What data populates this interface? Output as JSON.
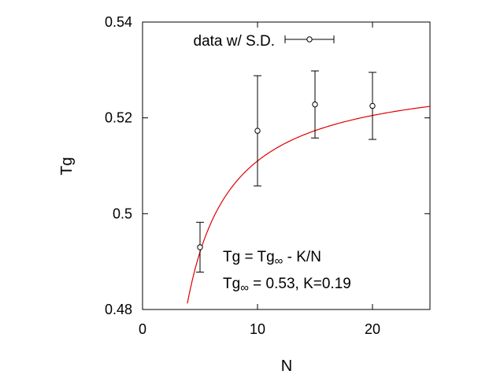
{
  "chart_data": {
    "type": "scatter",
    "xlabel": "N",
    "ylabel": "Tg",
    "xlim": [
      0,
      25
    ],
    "ylim": [
      0.48,
      0.54
    ],
    "xticks": [
      "0",
      "10",
      "20"
    ],
    "xtick_values": [
      0,
      10,
      20
    ],
    "yticks": [
      "0.48",
      "0.5",
      "0.52",
      "0.54"
    ],
    "ytick_values": [
      0.48,
      0.5,
      0.52,
      0.54
    ],
    "grid": false,
    "legend_position": "top",
    "series": [
      {
        "name": "data w/ S.D.",
        "marker": "open-circle",
        "color": "#000000",
        "x": [
          5,
          10,
          15,
          20
        ],
        "y": [
          0.493,
          0.5173,
          0.5228,
          0.5225
        ],
        "error": [
          0.0052,
          0.0115,
          0.007,
          0.007
        ]
      },
      {
        "fit": "Tg = Tg_inf - K/N",
        "color": "#e00000",
        "x_range": [
          3.9,
          25
        ],
        "Tg_inf": 0.53,
        "K": 0.19
      }
    ],
    "annotations": {
      "line1": {
        "pre": "Tg = Tg",
        "sub": "∞",
        "post": " - K/N"
      },
      "line2": {
        "pre": "Tg",
        "sub": "∞",
        "post": " = 0.53, K=0.19"
      }
    }
  }
}
